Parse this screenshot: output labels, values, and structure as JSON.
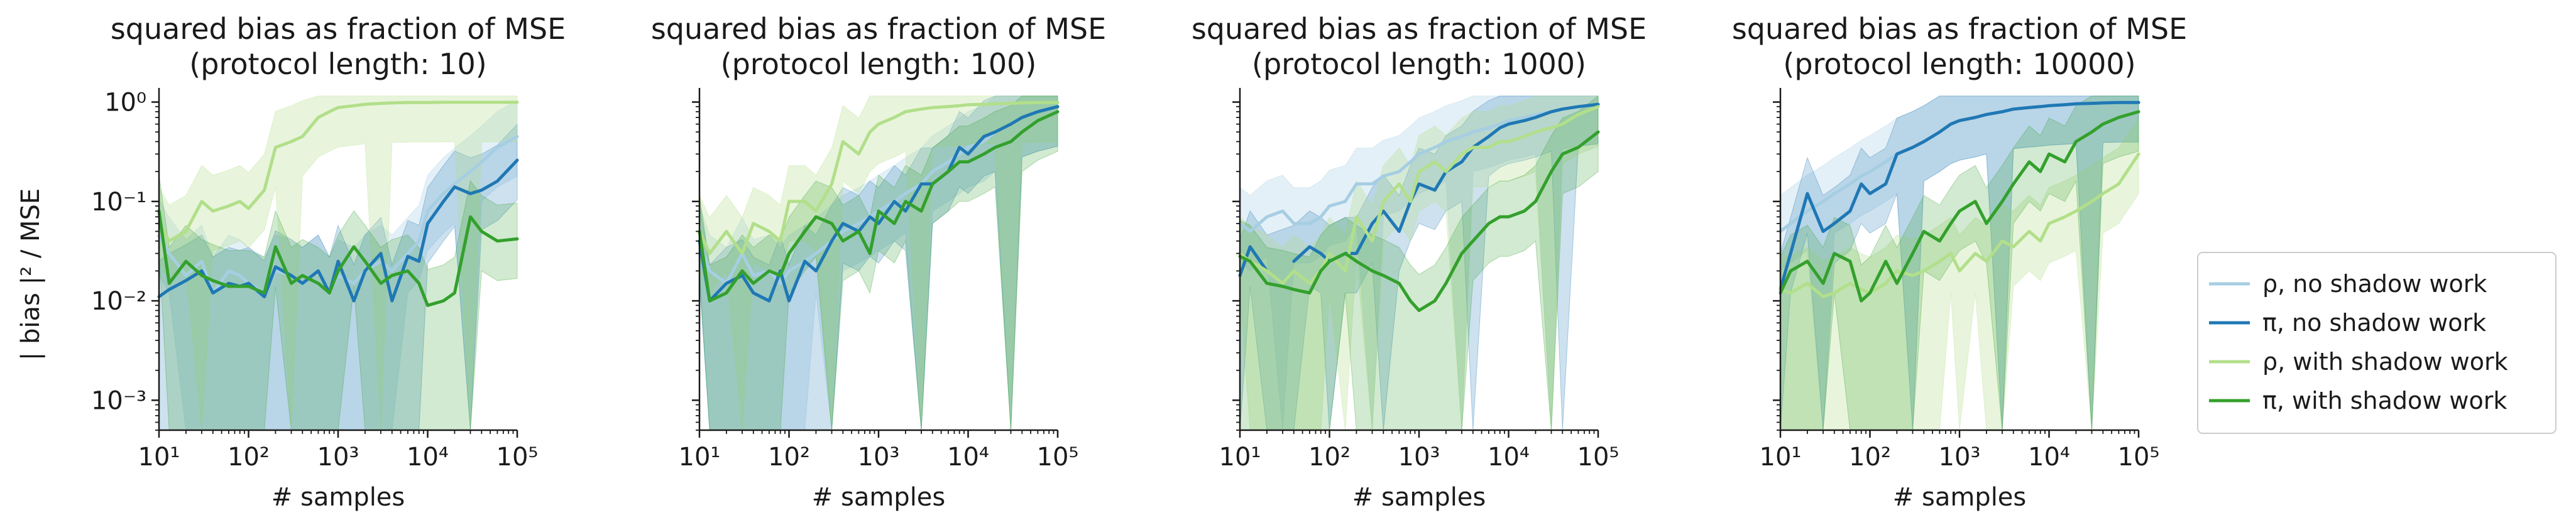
{
  "figure": {
    "ylabel": "| bias |² / MSE",
    "xlabel": "# samples"
  },
  "legend": {
    "placement": "right",
    "items": [
      {
        "label": "ρ, no shadow work",
        "color": "#a6cee3"
      },
      {
        "label": "π, no shadow work",
        "color": "#1f78b4"
      },
      {
        "label": "ρ, with shadow work",
        "color": "#b2df8a"
      },
      {
        "label": "π, with shadow work",
        "color": "#33a02c"
      }
    ]
  },
  "chart_data": [
    {
      "type": "line",
      "title": "squared bias as fraction of MSE",
      "subtitle": "(protocol length: 10)",
      "xlabel": "# samples",
      "ylabel": "| bias |² / MSE",
      "xscale": "log",
      "yscale": "log",
      "xlim": [
        10,
        100000
      ],
      "ylim": [
        0.0005,
        1.2
      ],
      "x": [
        10,
        13,
        20,
        30,
        40,
        60,
        80,
        100,
        150,
        200,
        300,
        400,
        600,
        800,
        1000,
        1500,
        2000,
        3000,
        4000,
        6000,
        8000,
        10000,
        15000,
        20000,
        30000,
        40000,
        60000,
        100000
      ],
      "series": [
        {
          "name": "ρ, no shadow work",
          "values": [
            0.045,
            0.03,
            0.018,
            0.025,
            0.012,
            0.02,
            0.018,
            0.015,
            0.012,
            0.02,
            0.018,
            0.015,
            0.02,
            0.012,
            0.018,
            0.015,
            0.02,
            0.025,
            0.02,
            0.03,
            0.04,
            0.08,
            0.12,
            0.15,
            0.2,
            0.25,
            0.35,
            0.45
          ]
        },
        {
          "name": "π, no shadow work",
          "values": [
            0.011,
            0.013,
            0.016,
            0.02,
            0.012,
            0.015,
            0.014,
            0.015,
            0.011,
            0.022,
            0.018,
            0.015,
            0.02,
            0.012,
            0.025,
            0.01,
            0.02,
            0.03,
            0.01,
            0.028,
            0.025,
            0.06,
            0.1,
            0.14,
            0.12,
            0.13,
            0.16,
            0.26
          ]
        },
        {
          "name": "ρ, with shadow work",
          "values": [
            0.06,
            0.04,
            0.05,
            0.1,
            0.08,
            0.09,
            0.1,
            0.085,
            0.13,
            0.35,
            0.4,
            0.45,
            0.7,
            0.8,
            0.88,
            0.92,
            0.95,
            0.97,
            0.98,
            0.99,
            0.99,
            0.99,
            0.995,
            0.995,
            0.995,
            0.995,
            0.995,
            0.995
          ]
        },
        {
          "name": "π, with shadow work",
          "values": [
            0.08,
            0.015,
            0.025,
            0.018,
            0.016,
            0.014,
            0.014,
            0.014,
            0.012,
            0.035,
            0.015,
            0.018,
            0.015,
            0.012,
            0.02,
            0.035,
            0.025,
            0.015,
            0.018,
            0.02,
            0.015,
            0.009,
            0.01,
            0.012,
            0.07,
            0.05,
            0.04,
            0.042
          ]
        }
      ]
    },
    {
      "type": "line",
      "title": "squared bias as fraction of MSE",
      "subtitle": "(protocol length: 100)",
      "xlabel": "# samples",
      "ylabel": "",
      "xscale": "log",
      "yscale": "log",
      "xlim": [
        10,
        100000
      ],
      "ylim": [
        0.0005,
        1.2
      ],
      "x": [
        10,
        13,
        20,
        30,
        40,
        60,
        80,
        100,
        150,
        200,
        300,
        400,
        600,
        800,
        1000,
        1500,
        2000,
        3000,
        4000,
        6000,
        8000,
        10000,
        15000,
        20000,
        30000,
        40000,
        60000,
        100000
      ],
      "series": [
        {
          "name": "ρ, no shadow work",
          "values": [
            0.04,
            0.02,
            0.015,
            0.03,
            0.018,
            0.02,
            0.015,
            0.02,
            0.025,
            0.03,
            0.04,
            0.05,
            0.06,
            0.07,
            0.08,
            0.1,
            0.12,
            0.15,
            0.2,
            0.25,
            0.3,
            0.35,
            0.4,
            0.5,
            0.6,
            0.7,
            0.8,
            0.9
          ]
        },
        {
          "name": "π, no shadow work",
          "values": [
            0.04,
            0.01,
            0.015,
            0.018,
            0.012,
            0.01,
            0.02,
            0.01,
            0.025,
            0.02,
            0.04,
            0.06,
            0.05,
            0.07,
            0.06,
            0.1,
            0.08,
            0.15,
            0.15,
            0.2,
            0.35,
            0.3,
            0.45,
            0.5,
            0.6,
            0.7,
            0.8,
            0.9
          ]
        },
        {
          "name": "ρ, with shadow work",
          "values": [
            0.05,
            0.03,
            0.05,
            0.03,
            0.06,
            0.05,
            0.04,
            0.1,
            0.1,
            0.08,
            0.15,
            0.4,
            0.3,
            0.5,
            0.6,
            0.7,
            0.8,
            0.85,
            0.88,
            0.9,
            0.92,
            0.94,
            0.95,
            0.96,
            0.97,
            0.98,
            0.99,
            0.99
          ]
        },
        {
          "name": "π, with shadow work",
          "values": [
            0.05,
            0.01,
            0.012,
            0.02,
            0.015,
            0.02,
            0.018,
            0.03,
            0.05,
            0.07,
            0.06,
            0.04,
            0.05,
            0.03,
            0.08,
            0.06,
            0.1,
            0.08,
            0.15,
            0.2,
            0.25,
            0.25,
            0.3,
            0.35,
            0.4,
            0.5,
            0.65,
            0.8
          ]
        }
      ]
    },
    {
      "type": "line",
      "title": "squared bias as fraction of MSE",
      "subtitle": "(protocol length: 1000)",
      "xlabel": "# samples",
      "ylabel": "",
      "xscale": "log",
      "yscale": "log",
      "xlim": [
        10,
        100000
      ],
      "ylim": [
        0.0005,
        1.2
      ],
      "x": [
        10,
        13,
        20,
        30,
        40,
        60,
        80,
        100,
        150,
        200,
        300,
        400,
        600,
        800,
        1000,
        1500,
        2000,
        3000,
        4000,
        6000,
        8000,
        10000,
        15000,
        20000,
        30000,
        40000,
        60000,
        100000
      ],
      "series": [
        {
          "name": "ρ, no shadow work",
          "values": [
            0.06,
            0.05,
            0.07,
            0.08,
            0.06,
            0.06,
            0.07,
            0.09,
            0.1,
            0.15,
            0.15,
            0.18,
            0.2,
            0.25,
            0.3,
            0.35,
            0.4,
            0.45,
            0.5,
            0.55,
            0.6,
            0.65,
            0.7,
            0.75,
            0.8,
            0.85,
            0.9,
            0.95
          ]
        },
        {
          "name": "π, no shadow work",
          "values": [
            0.018,
            0.035,
            0.02,
            null,
            0.025,
            0.035,
            0.03,
            0.025,
            0.03,
            0.03,
            0.06,
            0.08,
            0.05,
            0.1,
            0.15,
            0.13,
            0.2,
            0.25,
            0.35,
            0.45,
            0.55,
            0.6,
            0.65,
            0.7,
            0.8,
            0.85,
            0.9,
            0.95
          ]
        },
        {
          "name": "ρ, with shadow work",
          "values": [
            0.03,
            0.025,
            0.02,
            0.015,
            0.02,
            0.015,
            0.02,
            0.03,
            0.02,
            0.07,
            0.04,
            0.1,
            0.15,
            0.1,
            0.2,
            0.25,
            0.2,
            0.3,
            0.35,
            0.35,
            0.4,
            0.4,
            0.45,
            0.5,
            0.55,
            0.6,
            0.75,
            0.9
          ]
        },
        {
          "name": "π, with shadow work",
          "values": [
            0.028,
            0.025,
            0.015,
            0.014,
            0.013,
            0.012,
            0.02,
            0.025,
            0.03,
            0.025,
            0.02,
            0.018,
            0.015,
            0.01,
            0.008,
            0.01,
            0.015,
            0.03,
            0.04,
            0.06,
            0.07,
            0.07,
            0.08,
            0.1,
            0.2,
            0.3,
            0.35,
            0.5
          ]
        }
      ]
    },
    {
      "type": "line",
      "title": "squared bias as fraction of MSE",
      "subtitle": "(protocol length: 10000)",
      "xlabel": "# samples",
      "ylabel": "",
      "xscale": "log",
      "yscale": "log",
      "xlim": [
        10,
        100000
      ],
      "ylim": [
        0.0005,
        1.2
      ],
      "x": [
        10,
        13,
        20,
        30,
        40,
        60,
        80,
        100,
        150,
        200,
        300,
        400,
        600,
        800,
        1000,
        1500,
        2000,
        3000,
        4000,
        6000,
        8000,
        10000,
        15000,
        20000,
        30000,
        40000,
        60000,
        100000
      ],
      "series": [
        {
          "name": "ρ, no shadow work",
          "values": [
            0.05,
            0.06,
            0.08,
            0.1,
            0.12,
            0.15,
            0.18,
            0.2,
            0.25,
            0.3,
            0.35,
            0.4,
            0.5,
            0.6,
            0.65,
            0.7,
            0.75,
            0.8,
            0.85,
            0.88,
            0.9,
            0.92,
            0.94,
            0.96,
            0.97,
            0.98,
            0.99,
            0.99
          ]
        },
        {
          "name": "π, no shadow work",
          "values": [
            0.013,
            0.03,
            0.12,
            0.05,
            0.06,
            0.08,
            0.15,
            0.12,
            0.15,
            0.3,
            0.35,
            0.4,
            0.5,
            0.6,
            0.65,
            0.7,
            0.75,
            0.8,
            0.85,
            0.88,
            0.9,
            0.92,
            0.94,
            0.96,
            0.97,
            0.98,
            0.99,
            0.99
          ]
        },
        {
          "name": "ρ, with shadow work",
          "values": [
            0.013,
            0.012,
            0.015,
            0.011,
            0.012,
            0.015,
            0.013,
            0.012,
            0.015,
            0.02,
            0.018,
            0.02,
            0.025,
            0.03,
            0.02,
            0.03,
            0.025,
            0.04,
            0.035,
            0.05,
            0.04,
            0.06,
            0.07,
            0.08,
            0.1,
            0.12,
            0.15,
            0.3
          ]
        },
        {
          "name": "π, with shadow work",
          "values": [
            0.012,
            0.02,
            0.025,
            0.015,
            0.03,
            0.025,
            0.01,
            0.012,
            0.025,
            0.015,
            0.03,
            0.05,
            0.04,
            0.06,
            0.08,
            0.1,
            0.06,
            0.1,
            0.15,
            0.25,
            0.2,
            0.3,
            0.25,
            0.4,
            0.5,
            0.6,
            0.7,
            0.8
          ]
        }
      ]
    }
  ]
}
